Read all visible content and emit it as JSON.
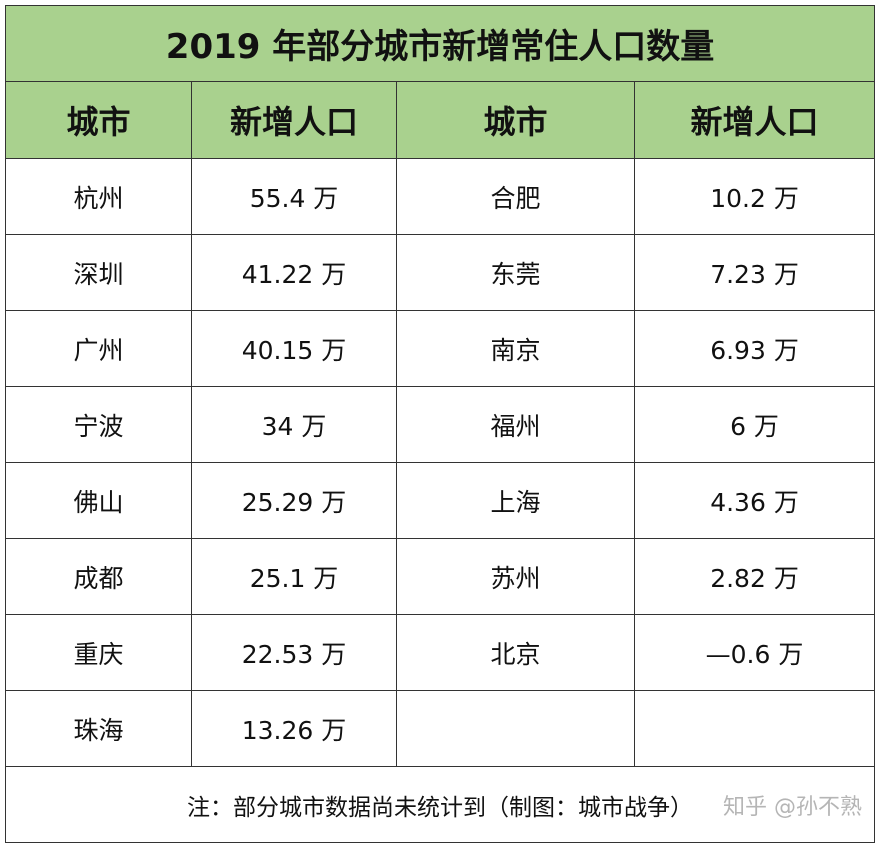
{
  "title": "2019 年部分城市新增常住人口数量",
  "headers": [
    "城市",
    "新增人口",
    "城市",
    "新增人口"
  ],
  "rows": [
    {
      "city1": "杭州",
      "value1": "55.4 万",
      "city2": "合肥",
      "value2": "10.2 万"
    },
    {
      "city1": "深圳",
      "value1": "41.22 万",
      "city2": "东莞",
      "value2": "7.23 万"
    },
    {
      "city1": "广州",
      "value1": "40.15 万",
      "city2": "南京",
      "value2": "6.93 万"
    },
    {
      "city1": "宁波",
      "value1": "34 万",
      "city2": "福州",
      "value2": "6 万"
    },
    {
      "city1": "佛山",
      "value1": "25.29 万",
      "city2": "上海",
      "value2": "4.36 万"
    },
    {
      "city1": "成都",
      "value1": "25.1 万",
      "city2": "苏州",
      "value2": "2.82 万"
    },
    {
      "city1": "重庆",
      "value1": "22.53 万",
      "city2": "北京",
      "value2": "—0.6 万"
    },
    {
      "city1": "珠海",
      "value1": "13.26 万",
      "city2": "",
      "value2": ""
    }
  ],
  "note": "注：部分城市数据尚未统计到（制图：城市战争）",
  "watermark": "知乎 @孙不熟",
  "colors": {
    "header_bg": "#a9d18e",
    "border": "#333333"
  }
}
